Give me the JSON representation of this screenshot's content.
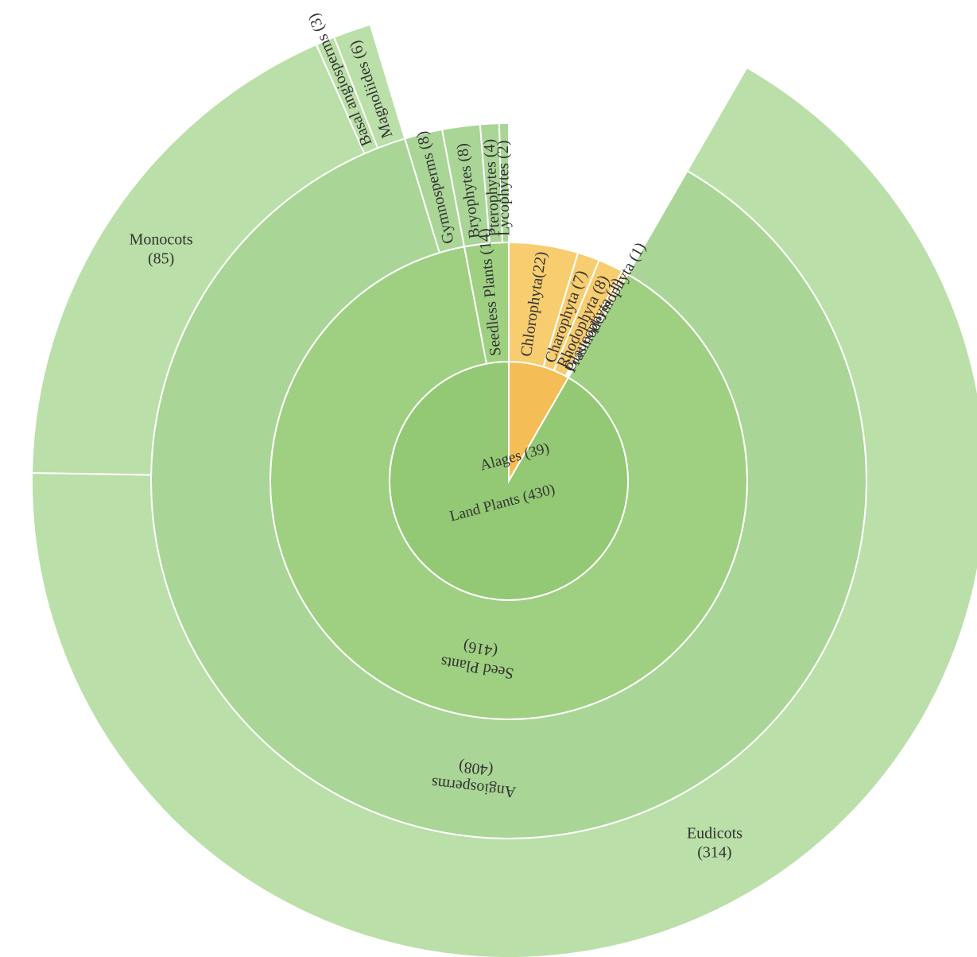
{
  "chart_data": {
    "type": "sunburst",
    "total": 469,
    "colors": {
      "green_1": "#93c874",
      "green_2": "#9fd082",
      "green_3": "#a9d596",
      "green_4": "#badfa8",
      "orange_1": "#f5bd55",
      "orange_2": "#f7cd70",
      "divider": "#ffffff",
      "text": "#333333"
    },
    "root": {
      "children": [
        {
          "name": "Land Plants",
          "label": "Land Plants (430)",
          "value": 430,
          "palette": "green",
          "children": [
            {
              "name": "Seed Plants",
              "label": "Seed Plants (416)",
              "value": 416,
              "children": [
                {
                  "name": "Angiosperms",
                  "label": "Angiosperms (408)",
                  "value": 408,
                  "children": [
                    {
                      "name": "Eudicots",
                      "label": "Eudicots (314)",
                      "value": 314
                    },
                    {
                      "name": "Monocots",
                      "label": "Monocots (85)",
                      "value": 85
                    },
                    {
                      "name": "Basal angiosperms",
                      "label": "Basal angiosperms (3)",
                      "value": 3
                    },
                    {
                      "name": "Magnoliides",
                      "label": "Magnoliides (6)",
                      "value": 6
                    }
                  ]
                },
                {
                  "name": "Gymnosperms",
                  "label": "Gymnosperms (8)",
                  "value": 8
                }
              ]
            },
            {
              "name": "Seedless Plants",
              "label": "Seedless Plants (14)",
              "value": 14,
              "children": [
                {
                  "name": "Bryophytes",
                  "label": "Bryophytes (8)",
                  "value": 8
                },
                {
                  "name": "Pterophytes",
                  "label": "Pterophytes (4)",
                  "value": 4
                },
                {
                  "name": "Lycophytes",
                  "label": "Lycophytes (2)",
                  "value": 2
                }
              ]
            }
          ]
        },
        {
          "name": "Alages",
          "label": "Alages (39)",
          "value": 39,
          "palette": "orange",
          "children": [
            {
              "name": "Chlorophyta",
              "label": "Chlorophyta(22)",
              "value": 22
            },
            {
              "name": "Charophyta",
              "label": "Charophyta (7)",
              "value": 7
            },
            {
              "name": "Rhodophyta",
              "label": "Rhodophyta (8)",
              "value": 8
            },
            {
              "name": "Glaucophyta",
              "label": "Glaucophyta (1)",
              "value": 1
            },
            {
              "name": "Prasinodermophyta",
              "label": "Prasinodermophyta (1)",
              "value": 1
            }
          ]
        }
      ]
    }
  }
}
